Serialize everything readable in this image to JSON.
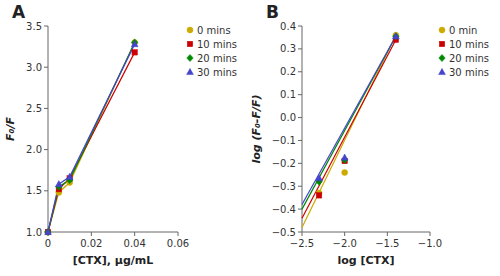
{
  "chart_data": [
    {
      "type": "line",
      "title": "A",
      "x_label": "[CTX], μg/mL",
      "y_label": "F₀/F",
      "x": [
        0,
        0.005,
        0.01,
        0.04
      ],
      "series": [
        {
          "name": "0 mins",
          "color": "#ccaa00",
          "marker": "circle",
          "values": [
            1.0,
            1.48,
            1.6,
            3.3
          ]
        },
        {
          "name": "10 mins",
          "color": "#cc0000",
          "marker": "square",
          "values": [
            1.0,
            1.52,
            1.65,
            3.18
          ]
        },
        {
          "name": "20 mins",
          "color": "#008800",
          "marker": "diamond",
          "values": [
            1.0,
            1.55,
            1.63,
            3.3
          ]
        },
        {
          "name": "30 mins",
          "color": "#4444cc",
          "marker": "triangle",
          "values": [
            1.0,
            1.58,
            1.67,
            3.28
          ]
        }
      ],
      "xlim": [
        0,
        0.06
      ],
      "xticks": [
        0,
        0.02,
        0.04,
        0.06
      ],
      "ylim": [
        1,
        3.5
      ],
      "yticks": [
        {
          "value": 1.0,
          "label": "1.0"
        },
        1.5,
        {
          "value": 2.0,
          "label": "2.0"
        },
        2.5,
        {
          "value": 3.0,
          "label": "3.0"
        },
        3.5
      ],
      "grid": false,
      "legend": "right"
    },
    {
      "type": "scatter",
      "title": "B",
      "x_label": "log [CTX]",
      "y_label": "log (F₀-F/F)",
      "x": [
        -2.3,
        -2.0,
        -1.4
      ],
      "series": [
        {
          "name": "0 min",
          "color": "#ccaa00",
          "marker": "circle",
          "values": [
            -0.33,
            -0.24,
            0.36
          ],
          "fit_x": [
            -2.5,
            -1.4
          ],
          "fit_y": [
            -0.48,
            0.36
          ]
        },
        {
          "name": "10 mins",
          "color": "#cc0000",
          "marker": "square",
          "values": [
            -0.34,
            -0.19,
            0.34
          ],
          "fit_x": [
            -2.5,
            -1.4
          ],
          "fit_y": [
            -0.44,
            0.34
          ]
        },
        {
          "name": "20 mins",
          "color": "#008800",
          "marker": "diamond",
          "values": [
            -0.28,
            -0.185,
            0.355
          ],
          "fit_x": [
            -2.5,
            -1.4
          ],
          "fit_y": [
            -0.4,
            0.355
          ]
        },
        {
          "name": "30 mins",
          "color": "#4444cc",
          "marker": "triangle",
          "values": [
            -0.265,
            -0.175,
            0.355
          ],
          "fit_x": [
            -2.5,
            -1.4
          ],
          "fit_y": [
            -0.38,
            0.355
          ]
        }
      ],
      "xlim": [
        -2.5,
        -1.0
      ],
      "xticks": [
        {
          "value": -2.5,
          "label": "−2.5"
        },
        {
          "value": -2.0,
          "label": "−2.0"
        },
        {
          "value": -1.5,
          "label": "−1.5"
        },
        {
          "value": -1.0,
          "label": "−1.0"
        }
      ],
      "ylim": [
        -0.5,
        0.4
      ],
      "yticks": [
        {
          "value": -0.5,
          "label": "−0.5"
        },
        {
          "value": -0.4,
          "label": "−0.4"
        },
        {
          "value": -0.3,
          "label": "−0.3"
        },
        {
          "value": -0.2,
          "label": "−0.2"
        },
        {
          "value": -0.1,
          "label": "−0.1"
        },
        {
          "value": 0.0,
          "label": "0.0"
        },
        0.1,
        0.2,
        0.3,
        0.4
      ],
      "grid": false,
      "legend": "right"
    }
  ]
}
